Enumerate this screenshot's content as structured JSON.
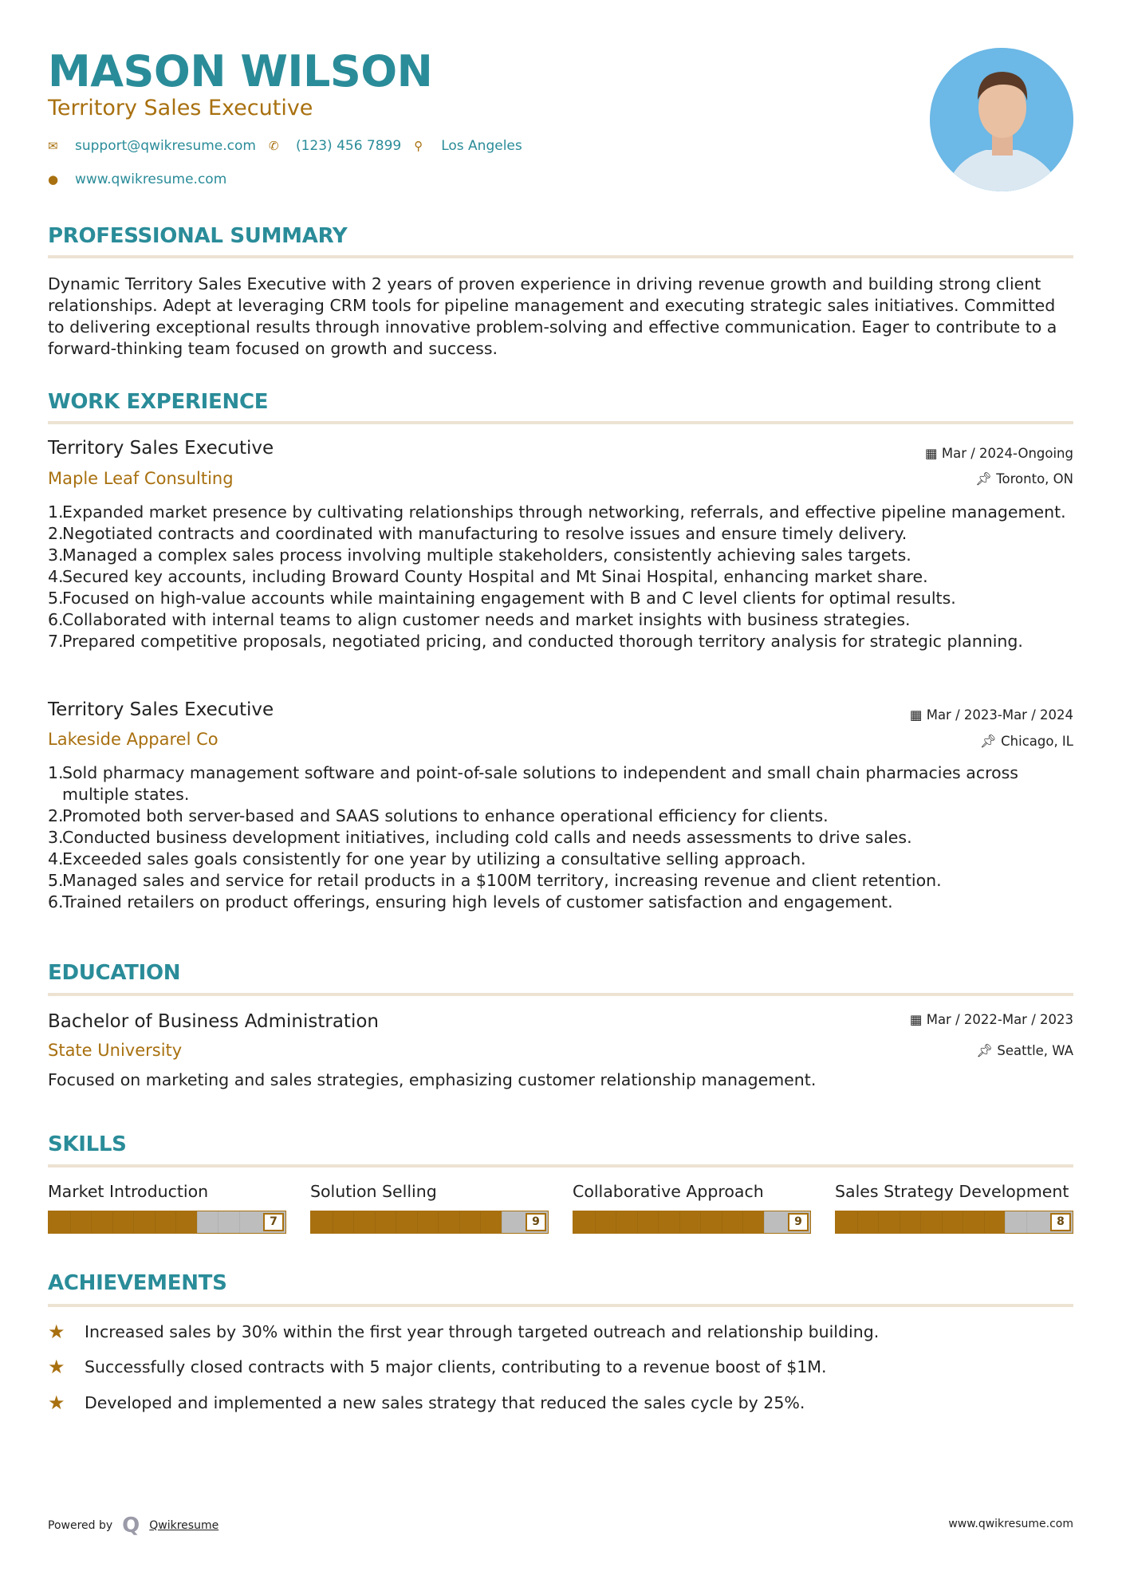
{
  "header": {
    "name": "MASON WILSON",
    "title": "Territory Sales Executive",
    "email": "support@qwikresume.com",
    "phone": "(123) 456 7899",
    "location": "Los Angeles",
    "website": "www.qwikresume.com"
  },
  "colors": {
    "accent": "#2a8c99",
    "secondary": "#a8700f",
    "rule": "#ede3d3"
  },
  "summary": {
    "heading": "PROFESSIONAL SUMMARY",
    "text": "Dynamic Territory Sales Executive with 2 years of proven experience in driving revenue growth and building strong client relationships. Adept at leveraging CRM tools for pipeline management and executing strategic sales initiatives. Committed to delivering exceptional results through innovative problem-solving and effective communication. Eager to contribute to a forward-thinking team focused on growth and success."
  },
  "experience": {
    "heading": "WORK EXPERIENCE",
    "jobs": [
      {
        "role": "Territory Sales Executive",
        "company": "Maple Leaf Consulting",
        "dates": "Mar / 2024-Ongoing",
        "location": "Toronto, ON",
        "bullets": [
          "Expanded market presence by cultivating relationships through networking, referrals, and effective pipeline management.",
          "Negotiated contracts and coordinated with manufacturing to resolve issues and ensure timely delivery.",
          "Managed a complex sales process involving multiple stakeholders, consistently achieving sales targets.",
          "Secured key accounts, including Broward County Hospital and Mt Sinai Hospital, enhancing market share.",
          "Focused on high-value accounts while maintaining engagement with B and C level clients for optimal results.",
          "Collaborated with internal teams to align customer needs and market insights with business strategies.",
          "Prepared competitive proposals, negotiated pricing, and conducted thorough territory analysis for strategic planning."
        ]
      },
      {
        "role": "Territory Sales Executive",
        "company": "Lakeside Apparel Co",
        "dates": "Mar / 2023-Mar / 2024",
        "location": "Chicago, IL",
        "bullets": [
          "Sold pharmacy management software and point-of-sale solutions to independent and small chain pharmacies across multiple states.",
          "Promoted both server-based and SAAS solutions to enhance operational efficiency for clients.",
          "Conducted business development initiatives, including cold calls and needs assessments to drive sales.",
          "Exceeded sales goals consistently for one year by utilizing a consultative selling approach.",
          "Managed sales and service for retail products in a $100M territory, increasing revenue and client retention.",
          "Trained retailers on product offerings, ensuring high levels of customer satisfaction and engagement."
        ]
      }
    ]
  },
  "education": {
    "heading": "EDUCATION",
    "degree": "Bachelor of Business Administration",
    "school": "State University",
    "dates": "Mar / 2022-Mar / 2023",
    "location": "Seattle, WA",
    "description": "Focused on marketing and sales strategies, emphasizing customer relationship management."
  },
  "skills": {
    "heading": "SKILLS",
    "items": [
      {
        "name": "Market Introduction",
        "level": 7
      },
      {
        "name": "Solution Selling",
        "level": 9
      },
      {
        "name": "Collaborative Approach",
        "level": 9
      },
      {
        "name": "Sales Strategy Development",
        "level": 8
      }
    ]
  },
  "achievements": {
    "heading": "ACHIEVEMENTS",
    "items": [
      "Increased sales by 30% within the first year through targeted outreach and relationship building.",
      "Successfully closed contracts with 5 major clients, contributing to a revenue boost of $1M.",
      "Developed and implemented a new sales strategy that reduced the sales cycle by 25%."
    ]
  },
  "footer": {
    "powered_by": "Powered by",
    "brand": "Qwikresume",
    "website": "www.qwikresume.com"
  }
}
